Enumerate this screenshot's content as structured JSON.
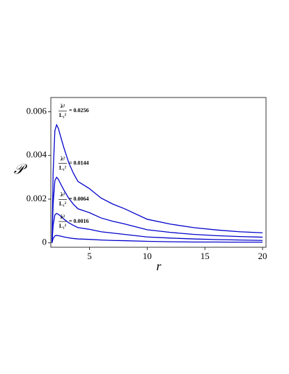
{
  "chart_data": {
    "type": "line",
    "xlabel": "r",
    "ylabel": "𝒫",
    "x": [
      1.75,
      1.85,
      2.0,
      2.15,
      2.3,
      2.5,
      2.8,
      3.2,
      3.6,
      4,
      5,
      6,
      7,
      8,
      10,
      12,
      14,
      16,
      18,
      20
    ],
    "series": [
      {
        "color": "#0000cc",
        "values": [
          0,
          0.00324,
          0.00513,
          0.0054,
          0.00524,
          0.00486,
          0.00432,
          0.00367,
          0.00319,
          0.00281,
          0.00248,
          0.00205,
          0.00178,
          0.00157,
          0.00108,
          0.00086,
          0.0007,
          0.00059,
          0.00051,
          0.00046
        ]
      },
      {
        "color": "#0000cc",
        "values": [
          0,
          0.0018,
          0.00285,
          0.003,
          0.00291,
          0.0027,
          0.0024,
          0.00204,
          0.00177,
          0.00156,
          0.00138,
          0.00114,
          0.00099,
          0.00087,
          0.0006,
          0.00048,
          0.00039,
          0.00033,
          0.00029,
          0.00026
        ]
      },
      {
        "color": "#0000cc",
        "values": [
          0,
          0.00081,
          0.00128,
          0.00135,
          0.00131,
          0.00122,
          0.00108,
          0.00092,
          0.0008,
          0.0007,
          0.00062,
          0.00051,
          0.00045,
          0.00039,
          0.00027,
          0.00022,
          0.00018,
          0.00015,
          0.00013,
          0.00011
        ]
      },
      {
        "color": "#0000cc",
        "values": [
          0,
          0.0002,
          0.00032,
          0.00034,
          0.00033,
          0.00031,
          0.00027,
          0.00023,
          0.0002,
          0.00018,
          0.00016,
          0.00013,
          0.00011,
          0.0001,
          7e-05,
          5e-05,
          4e-05,
          4e-05,
          3e-05,
          3e-05
        ]
      }
    ],
    "annotations": [
      {
        "numerator": "λ²",
        "denominator": "L₁²",
        "text": "= 0.0256"
      },
      {
        "numerator": "λ²",
        "denominator": "L₁²",
        "text": "= 0.0144"
      },
      {
        "numerator": "λ²",
        "denominator": "L₁²",
        "text": "= 0.0064"
      },
      {
        "numerator": "λ²",
        "denominator": "L₁²",
        "text": "= 0.0016"
      }
    ],
    "xlim": [
      1.65,
      20.3
    ],
    "xticks": [
      5,
      10,
      15,
      20
    ],
    "ylim": [
      -0.0002,
      0.00665
    ],
    "yticks": [
      0,
      0.002,
      0.004,
      0.006
    ]
  }
}
